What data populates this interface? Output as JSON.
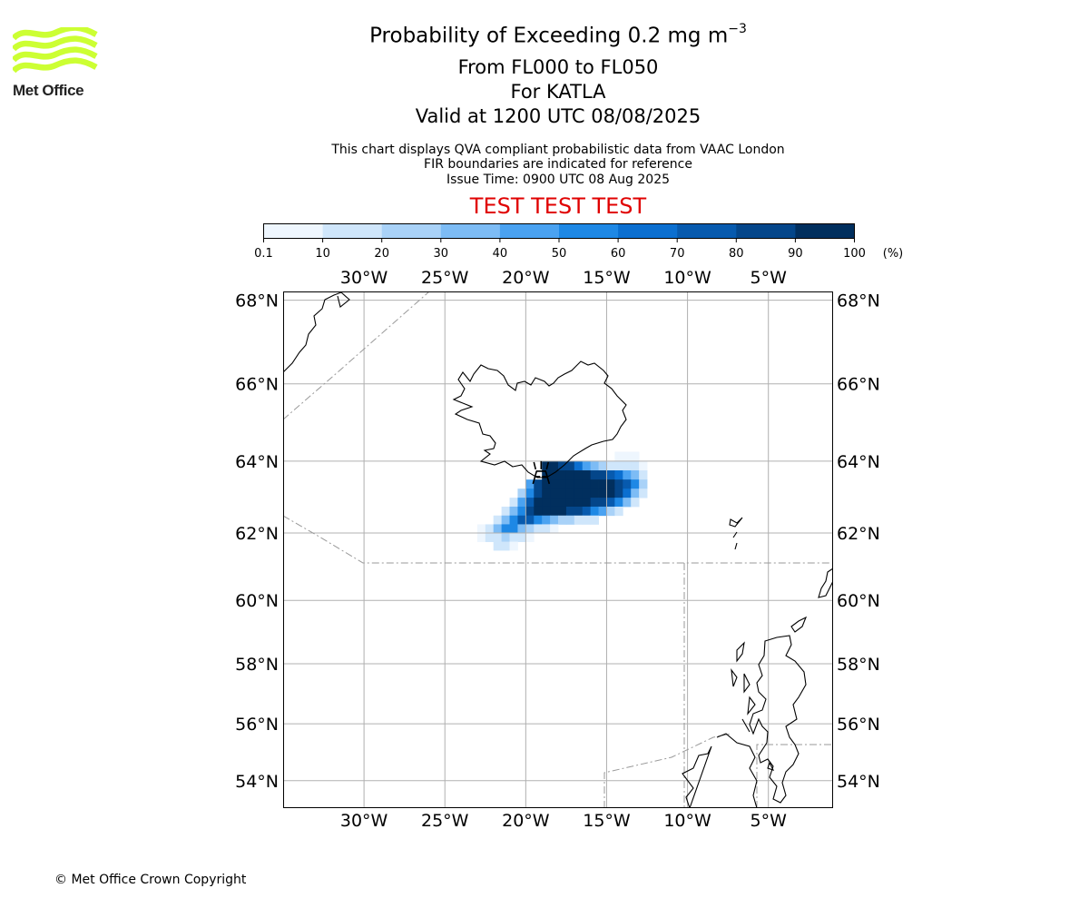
{
  "logo": {
    "text": "Met Office",
    "color": "#ccff33"
  },
  "title": {
    "main_prefix": "Probability of Exceeding 0.2 mg m",
    "main_exponent": "−3",
    "flight_levels": "From FL000 to FL050",
    "volcano": "For KATLA",
    "valid": "Valid at 1200 UTC 08/08/2025"
  },
  "notes": {
    "line1": "This chart displays QVA compliant probabilistic data from VAAC London",
    "line2": "FIR boundaries are indicated for reference",
    "line3": "Issue Time: 0900 UTC 08 Aug 2025"
  },
  "test_banner": {
    "text": "TEST TEST TEST",
    "color": "#e00000"
  },
  "colorbar": {
    "ticks": [
      "0.1",
      "10",
      "20",
      "30",
      "40",
      "50",
      "60",
      "70",
      "80",
      "90",
      "100"
    ],
    "unit": "(%)",
    "colors": [
      "#eef6fe",
      "#cfe6fb",
      "#a9d2f8",
      "#7dbcf5",
      "#4aa2f1",
      "#1e88e5",
      "#0b6fd0",
      "#075aae",
      "#04468a",
      "#012f5e"
    ]
  },
  "map": {
    "lon_ticks": [
      "30°W",
      "25°W",
      "20°W",
      "15°W",
      "10°W",
      "5°W"
    ],
    "lat_ticks": [
      "68°N",
      "66°N",
      "64°N",
      "62°N",
      "60°N",
      "58°N",
      "56°N",
      "54°N"
    ],
    "volcano_icon": "volcano-icon"
  },
  "chart_data": {
    "type": "heatmap",
    "title": "Probability of Exceeding 0.2 mg m−3",
    "legend_unit": "(%)",
    "legend_placement": "top",
    "grid": true,
    "xlim": [
      -35,
      -1
    ],
    "ylim": [
      53,
      68.2
    ],
    "x_ticks_deg": [
      -30,
      -25,
      -20,
      -15,
      -10,
      -5
    ],
    "y_ticks_deg": [
      68,
      66,
      64,
      62,
      60,
      58,
      56,
      54
    ],
    "grid_step_deg": [
      0.5,
      0.25
    ],
    "cells": [
      [
        -14.5,
        64.0,
        5
      ],
      [
        -14.0,
        64.0,
        5
      ],
      [
        -13.5,
        64.0,
        5
      ],
      [
        -19.0,
        63.75,
        90
      ],
      [
        -18.5,
        63.75,
        90
      ],
      [
        -18.0,
        63.75,
        85
      ],
      [
        -17.5,
        63.75,
        80
      ],
      [
        -17.0,
        63.75,
        60
      ],
      [
        -16.5,
        63.75,
        45
      ],
      [
        -16.0,
        63.75,
        30
      ],
      [
        -15.5,
        63.75,
        20
      ],
      [
        -15.0,
        63.75,
        15
      ],
      [
        -14.5,
        63.75,
        15
      ],
      [
        -14.0,
        63.75,
        10
      ],
      [
        -13.5,
        63.75,
        10
      ],
      [
        -13.0,
        63.75,
        5
      ],
      [
        -19.0,
        63.5,
        95
      ],
      [
        -18.5,
        63.5,
        95
      ],
      [
        -18.0,
        63.5,
        95
      ],
      [
        -17.5,
        63.5,
        92
      ],
      [
        -17.0,
        63.5,
        90
      ],
      [
        -16.5,
        63.5,
        90
      ],
      [
        -16.0,
        63.5,
        85
      ],
      [
        -15.5,
        63.5,
        85
      ],
      [
        -15.0,
        63.5,
        70
      ],
      [
        -14.5,
        63.5,
        60
      ],
      [
        -14.0,
        63.5,
        45
      ],
      [
        -13.5,
        63.5,
        35
      ],
      [
        -13.0,
        63.5,
        15
      ],
      [
        -20.0,
        63.25,
        40
      ],
      [
        -19.5,
        63.25,
        80
      ],
      [
        -19.0,
        63.25,
        95
      ],
      [
        -18.5,
        63.25,
        95
      ],
      [
        -18.0,
        63.25,
        95
      ],
      [
        -17.5,
        63.25,
        95
      ],
      [
        -17.0,
        63.25,
        95
      ],
      [
        -16.5,
        63.25,
        95
      ],
      [
        -16.0,
        63.25,
        95
      ],
      [
        -15.5,
        63.25,
        90
      ],
      [
        -15.0,
        63.25,
        90
      ],
      [
        -14.5,
        63.25,
        85
      ],
      [
        -14.0,
        63.25,
        75
      ],
      [
        -13.5,
        63.25,
        50
      ],
      [
        -13.0,
        63.25,
        20
      ],
      [
        -20.5,
        63.0,
        25
      ],
      [
        -20.0,
        63.0,
        55
      ],
      [
        -19.5,
        63.0,
        80
      ],
      [
        -19.0,
        63.0,
        95
      ],
      [
        -18.5,
        63.0,
        95
      ],
      [
        -18.0,
        63.0,
        95
      ],
      [
        -17.5,
        63.0,
        95
      ],
      [
        -17.0,
        63.0,
        95
      ],
      [
        -16.5,
        63.0,
        95
      ],
      [
        -16.0,
        63.0,
        95
      ],
      [
        -15.5,
        63.0,
        95
      ],
      [
        -15.0,
        63.0,
        90
      ],
      [
        -14.5,
        63.0,
        80
      ],
      [
        -14.0,
        63.0,
        60
      ],
      [
        -13.5,
        63.0,
        35
      ],
      [
        -13.0,
        63.0,
        10
      ],
      [
        -21.0,
        62.75,
        15
      ],
      [
        -20.5,
        62.75,
        40
      ],
      [
        -20.0,
        62.75,
        70
      ],
      [
        -19.5,
        62.75,
        90
      ],
      [
        -19.0,
        62.75,
        95
      ],
      [
        -18.5,
        62.75,
        95
      ],
      [
        -18.0,
        62.75,
        95
      ],
      [
        -17.5,
        62.75,
        95
      ],
      [
        -17.0,
        62.75,
        95
      ],
      [
        -16.5,
        62.75,
        90
      ],
      [
        -16.0,
        62.75,
        85
      ],
      [
        -15.5,
        62.75,
        80
      ],
      [
        -15.0,
        62.75,
        70
      ],
      [
        -14.5,
        62.75,
        50
      ],
      [
        -14.0,
        62.75,
        30
      ],
      [
        -13.5,
        62.75,
        10
      ],
      [
        -21.5,
        62.5,
        15
      ],
      [
        -21.0,
        62.5,
        30
      ],
      [
        -20.5,
        62.5,
        55
      ],
      [
        -20.0,
        62.5,
        80
      ],
      [
        -19.5,
        62.5,
        90
      ],
      [
        -19.0,
        62.5,
        95
      ],
      [
        -18.5,
        62.5,
        95
      ],
      [
        -18.0,
        62.5,
        92
      ],
      [
        -17.5,
        62.5,
        88
      ],
      [
        -17.0,
        62.5,
        80
      ],
      [
        -16.5,
        62.5,
        70
      ],
      [
        -16.0,
        62.5,
        55
      ],
      [
        -15.5,
        62.5,
        40
      ],
      [
        -15.0,
        62.5,
        20
      ],
      [
        -14.5,
        62.5,
        10
      ],
      [
        -22.0,
        62.25,
        10
      ],
      [
        -21.5,
        62.25,
        30
      ],
      [
        -21.0,
        62.25,
        55
      ],
      [
        -20.5,
        62.25,
        75
      ],
      [
        -20.0,
        62.25,
        70
      ],
      [
        -19.5,
        62.25,
        55
      ],
      [
        -19.0,
        62.25,
        45
      ],
      [
        -18.5,
        62.25,
        35
      ],
      [
        -18.0,
        62.25,
        25
      ],
      [
        -17.5,
        62.25,
        20
      ],
      [
        -17.0,
        62.25,
        15
      ],
      [
        -16.5,
        62.25,
        10
      ],
      [
        -16.0,
        62.25,
        10
      ],
      [
        -23.0,
        62.0,
        5
      ],
      [
        -22.5,
        62.0,
        15
      ],
      [
        -22.0,
        62.0,
        35
      ],
      [
        -21.5,
        62.0,
        55
      ],
      [
        -21.0,
        62.0,
        50
      ],
      [
        -20.5,
        62.0,
        35
      ],
      [
        -20.0,
        62.0,
        25
      ],
      [
        -19.5,
        62.0,
        15
      ],
      [
        -19.0,
        62.0,
        10
      ],
      [
        -18.5,
        62.0,
        5
      ],
      [
        -23.0,
        61.75,
        5
      ],
      [
        -22.5,
        61.75,
        10
      ],
      [
        -22.0,
        61.75,
        15
      ],
      [
        -21.5,
        61.75,
        20
      ],
      [
        -21.0,
        61.75,
        15
      ],
      [
        -20.5,
        61.75,
        10
      ],
      [
        -20.0,
        61.75,
        5
      ],
      [
        -22.0,
        61.5,
        10
      ],
      [
        -21.5,
        61.5,
        10
      ],
      [
        -21.0,
        61.5,
        5
      ]
    ],
    "volcano": {
      "name": "KATLA",
      "lon": -19.05,
      "lat": 63.63
    }
  }
}
